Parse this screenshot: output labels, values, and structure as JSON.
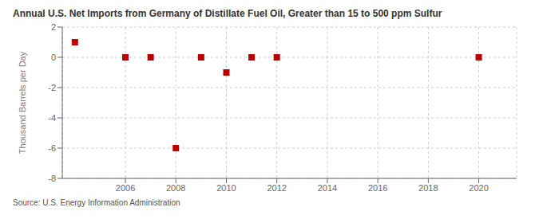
{
  "chart_data": {
    "type": "scatter",
    "title": "Annual U.S. Net Imports from Germany of Distillate Fuel Oil, Greater than 15 to 500 ppm Sulfur",
    "y_label": "Thousand Barrels per Day",
    "annotations": [
      "Source: U.S. Energy Information Administration"
    ],
    "x": [
      2004,
      2006,
      2007,
      2008,
      2009,
      2010,
      2011,
      2012,
      2020
    ],
    "values": [
      1.0,
      0.0,
      0.0,
      -6.0,
      0.0,
      -1.0,
      0.0,
      0.0,
      0.0
    ],
    "color": "#bb0000",
    "marker": "square",
    "xlim": [
      2003.5,
      2021.5
    ],
    "xticks": [
      2006,
      2008,
      2010,
      2012,
      2014,
      2016,
      2018,
      2020
    ],
    "ylim": [
      -8,
      2
    ],
    "yticks": [
      -8,
      -6,
      -4,
      -2,
      0,
      2
    ],
    "grid": true
  }
}
